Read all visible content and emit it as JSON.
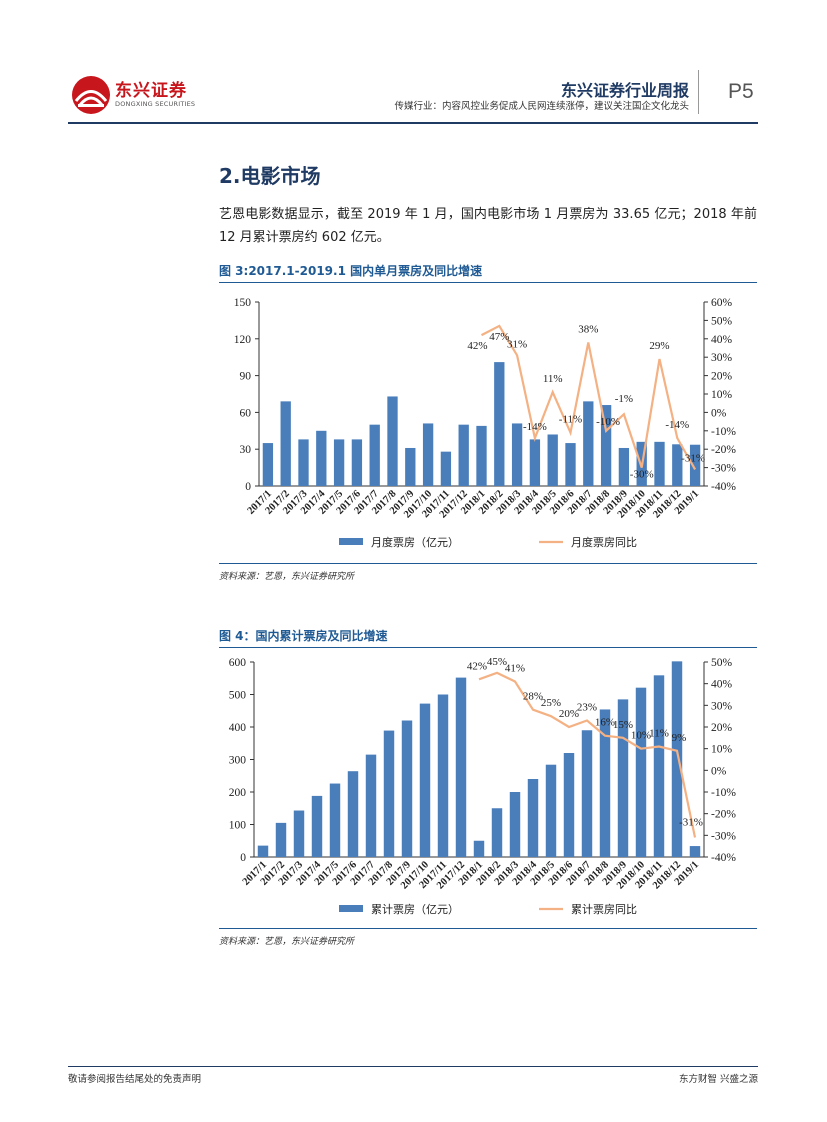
{
  "header": {
    "brand_cn": "东兴证券",
    "brand_en": "DONGXING SECURITIES",
    "report_name": "东兴证券行业周报",
    "subtitle": "传媒行业：内容风控业务促成人民网连续涨停，建议关注国企文化龙头",
    "page": "P5"
  },
  "section": {
    "title": "2.电影市场",
    "paragraph": "艺恩电影数据显示，截至 2019 年 1 月，国内电影市场 1 月票房为 33.65 亿元；2018 年前 12 月累计票房约 602 亿元。"
  },
  "figure3": {
    "caption": "图 3:2017.1-2019.1 国内单月票房及同比增速",
    "source": "资料来源：艺恩，东兴证券研究所"
  },
  "figure4": {
    "caption": "图 4：国内累计票房及同比增速",
    "source": "资料来源：艺恩，东兴证券研究所"
  },
  "footer": {
    "left": "敬请参阅报告结尾处的免责声明",
    "right": "东方财智 兴盛之源"
  },
  "colors": {
    "bar": "#4a7ebb",
    "line": "#f4b183",
    "accent": "#c8161d",
    "navy": "#1f3a63"
  },
  "chart_data": [
    {
      "type": "bar",
      "title": "图 3:2017.1-2019.1 国内单月票房及同比增速",
      "categories": [
        "2017/1",
        "2017/2",
        "2017/3",
        "2017/4",
        "2017/5",
        "2017/6",
        "2017/7",
        "2017/8",
        "2017/9",
        "2017/10",
        "2017/11",
        "2017/12",
        "2018/1",
        "2018/2",
        "2018/3",
        "2018/4",
        "2018/5",
        "2018/6",
        "2018/7",
        "2018/8",
        "2018/9",
        "2018/10",
        "2018/11",
        "2018/12",
        "2019/1"
      ],
      "series": [
        {
          "name": "月度票房（亿元）",
          "type": "bar",
          "axis": "left",
          "values": [
            35,
            69,
            38,
            45,
            38,
            38,
            50,
            73,
            31,
            51,
            28,
            50,
            49,
            101,
            51,
            38,
            42,
            35,
            69,
            66,
            31,
            36,
            36,
            34,
            33.65
          ]
        },
        {
          "name": "月度票房同比",
          "type": "line",
          "axis": "right",
          "values": [
            null,
            null,
            null,
            null,
            null,
            null,
            null,
            null,
            null,
            null,
            null,
            null,
            42,
            47,
            31,
            -14,
            11,
            -11,
            38,
            -10,
            -1,
            -30,
            29,
            -14,
            -31
          ],
          "labels": [
            "",
            "",
            "",
            "",
            "",
            "",
            "",
            "",
            "",
            "",
            "",
            "",
            "42%",
            "47%",
            "31%",
            "-14%",
            "11%",
            "-11%",
            "38%",
            "-10%",
            "-1%",
            "-30%",
            "29%",
            "-14%",
            "-31%"
          ]
        }
      ],
      "ylim_left": [
        0,
        150
      ],
      "yticks_left": [
        "0",
        "30",
        "60",
        "90",
        "120",
        "150"
      ],
      "ylim_right": [
        -40,
        60
      ],
      "yticks_right": [
        "-40%",
        "-30%",
        "-20%",
        "-10%",
        "0%",
        "10%",
        "20%",
        "30%",
        "40%",
        "50%",
        "60%"
      ],
      "legend": "bottom"
    },
    {
      "type": "bar",
      "title": "图 4：国内累计票房及同比增速",
      "categories": [
        "2017/1",
        "2017/2",
        "2017/3",
        "2017/4",
        "2017/5",
        "2017/6",
        "2017/7",
        "2017/8",
        "2017/9",
        "2017/10",
        "2017/11",
        "2017/12",
        "2018/1",
        "2018/2",
        "2018/3",
        "2018/4",
        "2018/5",
        "2018/6",
        "2018/7",
        "2018/8",
        "2018/9",
        "2018/10",
        "2018/11",
        "2018/12",
        "2019/1"
      ],
      "series": [
        {
          "name": "累计票房（亿元）",
          "type": "bar",
          "axis": "left",
          "values": [
            35,
            105,
            143,
            188,
            226,
            264,
            315,
            389,
            420,
            472,
            500,
            552,
            50,
            150,
            200,
            240,
            284,
            320,
            390,
            454,
            485,
            521,
            559,
            602,
            33.65
          ]
        },
        {
          "name": "累计票房同比",
          "type": "line",
          "axis": "right",
          "values": [
            null,
            null,
            null,
            null,
            null,
            null,
            null,
            null,
            null,
            null,
            null,
            null,
            42,
            45,
            41,
            28,
            25,
            20,
            23,
            16,
            15,
            10,
            11,
            9,
            -31
          ],
          "labels": [
            "",
            "",
            "",
            "",
            "",
            "",
            "",
            "",
            "",
            "",
            "",
            "",
            "42%",
            "45%",
            "41%",
            "28%",
            "25%",
            "20%",
            "23%",
            "16%",
            "15%",
            "10%",
            "11%",
            "9%",
            "-31%"
          ]
        }
      ],
      "ylim_left": [
        0,
        600
      ],
      "yticks_left": [
        "0",
        "100",
        "200",
        "300",
        "400",
        "500",
        "600"
      ],
      "ylim_right": [
        -40,
        50
      ],
      "yticks_right": [
        "-40%",
        "-30%",
        "-20%",
        "-10%",
        "0%",
        "10%",
        "20%",
        "30%",
        "40%",
        "50%"
      ],
      "legend": "bottom"
    }
  ]
}
